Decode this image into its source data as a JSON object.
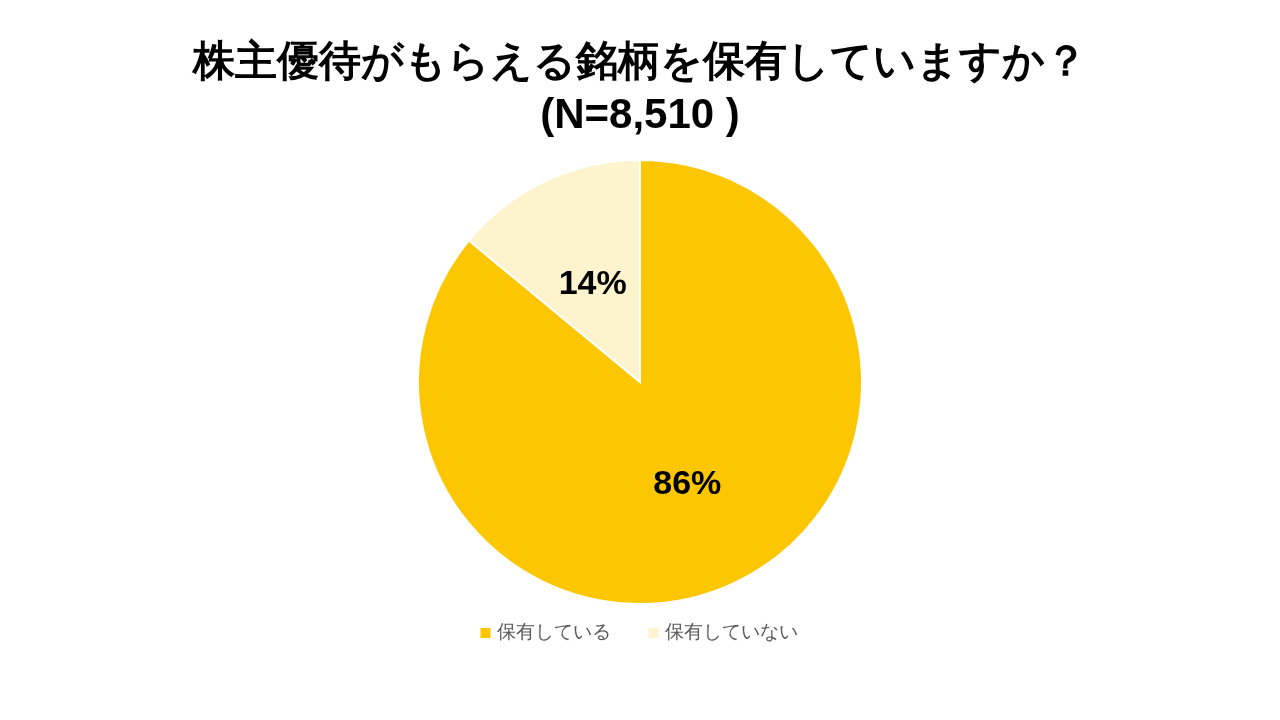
{
  "chart_data": {
    "type": "pie",
    "title": "株主優待がもらえる銘柄を保有していますか？",
    "subtitle": "(N=8,510 )",
    "categories": [
      "保有している",
      "保有していない"
    ],
    "values": [
      86,
      14
    ],
    "colors": [
      "#fcc600",
      "#fdf3cc"
    ],
    "value_labels": [
      "86%",
      "14%"
    ],
    "legend": "bottom"
  }
}
